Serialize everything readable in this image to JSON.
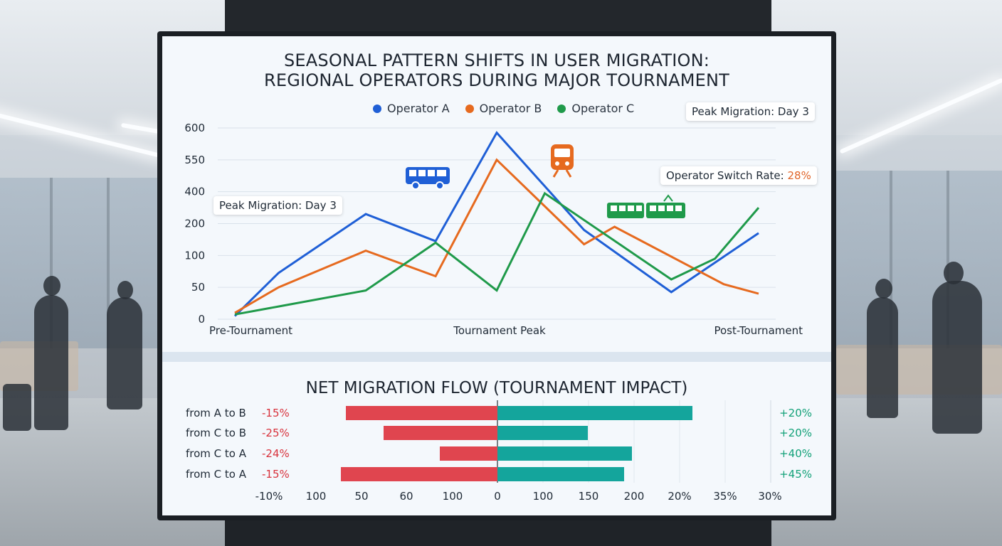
{
  "chart_data": [
    {
      "type": "line",
      "title": "SEASONAL PATTERN SHIFTS IN USER MIGRATION:",
      "subtitle": "REGIONAL OPERATORS DURING MAJOR TOURNAMENT",
      "x_labels": [
        "Pre-Tournament",
        "Tournament Peak",
        "Post-Tournament"
      ],
      "y_ticks": [
        "600",
        "550",
        "400",
        "200",
        "100",
        "50",
        "0"
      ],
      "grid": true,
      "legend_position": "top",
      "series": [
        {
          "name": "Operator A",
          "color": "#1f5fd6",
          "points": [
            [
              0,
              0.1
            ],
            [
              0.5,
              1.45
            ],
            [
              1.5,
              3.3
            ],
            [
              2.3,
              2.45
            ],
            [
              3,
              5.85
            ],
            [
              4,
              2.8
            ],
            [
              5,
              0.85
            ],
            [
              6,
              2.7
            ]
          ]
        },
        {
          "name": "Operator B",
          "color": "#e66a1f",
          "points": [
            [
              0,
              0.2
            ],
            [
              0.5,
              1.0
            ],
            [
              1.5,
              2.15
            ],
            [
              2.3,
              1.35
            ],
            [
              3,
              5.0
            ],
            [
              4,
              2.35
            ],
            [
              4.35,
              2.9
            ],
            [
              5.6,
              1.1
            ],
            [
              6,
              0.8
            ]
          ]
        },
        {
          "name": "Operator C",
          "color": "#1f9a4a",
          "points": [
            [
              0,
              0.15
            ],
            [
              0.5,
              0.4
            ],
            [
              1.5,
              0.9
            ],
            [
              2.3,
              2.4
            ],
            [
              3,
              0.9
            ],
            [
              3.55,
              3.95
            ],
            [
              5,
              1.25
            ],
            [
              5.5,
              1.9
            ],
            [
              6,
              3.5
            ]
          ]
        }
      ],
      "annotations": [
        "Peak Migration: Day 3",
        "Operator Switch Rate: 28%",
        "Peak Migration: Day 3"
      ]
    },
    {
      "type": "bar",
      "title": "NET MIGRATION FLOW (TOURNAMENT IMPACT)",
      "orientation": "horizontal-diverging",
      "categories": [
        "from A to B",
        "from C to B",
        "from C to A",
        "from C to A"
      ],
      "negative_labels": [
        "-15%",
        "-25%",
        "-24%",
        "-15%"
      ],
      "positive_labels": [
        "+20%",
        "+20%",
        "+40%",
        "+45%"
      ],
      "negative_values": [
        213,
        160,
        81,
        220
      ],
      "positive_values": [
        274,
        127,
        189,
        178
      ],
      "x_ticks": [
        "-10%",
        "100",
        "50",
        "60",
        "100",
        "0",
        "100",
        "150",
        "200",
        "20%",
        "35%",
        "30%"
      ],
      "colors": {
        "negative": "#e0454f",
        "positive": "#14a59c"
      }
    }
  ],
  "legend": [
    {
      "name": "Operator A",
      "color": "#1f5fd6"
    },
    {
      "name": "Operator B",
      "color": "#e66a1f"
    },
    {
      "name": "Operator C",
      "color": "#1f9a4a"
    }
  ],
  "callouts": {
    "peak_top_right": "Peak Migration: Day 3",
    "switch_rate_label": "Operator Switch Rate: ",
    "switch_rate_value": "28%",
    "peak_left": "Peak Migration: Day 3"
  },
  "icons": [
    "bus-icon",
    "train-icon",
    "tram-icon"
  ]
}
